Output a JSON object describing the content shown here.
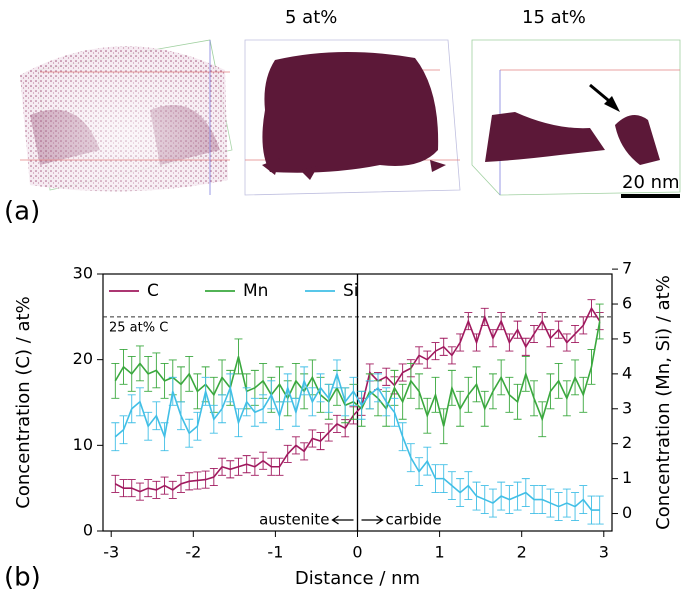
{
  "figure": {
    "label_a": "(a)",
    "label_b": "(b)",
    "view_labels": [
      "5 at%",
      "15 at%"
    ],
    "scale_bar": "20 nm"
  },
  "chart_data": {
    "type": "line",
    "x_label": "Distance / nm",
    "y_label": "Concentration (C) / at%",
    "y2_label": "Concentration (Mn, Si) / at%",
    "xlim": [
      -3.1,
      3.1
    ],
    "xticks": [
      -3,
      -2,
      -1,
      0,
      1,
      2,
      3
    ],
    "ylim": [
      0,
      30
    ],
    "yticks": [
      0,
      10,
      20,
      30
    ],
    "y2lim": [
      -0.5,
      6.86
    ],
    "y2ticks": [
      0,
      1,
      2,
      3,
      4,
      5,
      6,
      7
    ],
    "legend": "top-left",
    "reference_line": {
      "value": 25,
      "label": "25 at% C"
    },
    "divider": 0,
    "annotations": [
      "austenite",
      "carbide"
    ],
    "x": [
      -2.95,
      -2.85,
      -2.75,
      -2.65,
      -2.55,
      -2.45,
      -2.35,
      -2.25,
      -2.15,
      -2.05,
      -1.95,
      -1.85,
      -1.75,
      -1.65,
      -1.55,
      -1.45,
      -1.35,
      -1.25,
      -1.15,
      -1.05,
      -0.95,
      -0.85,
      -0.75,
      -0.65,
      -0.55,
      -0.45,
      -0.35,
      -0.25,
      -0.15,
      -0.05,
      0.05,
      0.15,
      0.25,
      0.35,
      0.45,
      0.55,
      0.65,
      0.75,
      0.85,
      0.95,
      1.05,
      1.15,
      1.25,
      1.35,
      1.45,
      1.55,
      1.65,
      1.75,
      1.85,
      1.95,
      2.05,
      2.15,
      2.25,
      2.35,
      2.45,
      2.55,
      2.65,
      2.75,
      2.85,
      2.95
    ],
    "series": [
      {
        "name": "C",
        "color": "#a0195e",
        "axis": "y",
        "error": 1,
        "values": [
          5.5,
          5.0,
          5.0,
          4.6,
          5.0,
          4.8,
          5.3,
          4.8,
          5.5,
          5.8,
          5.9,
          6.0,
          6.3,
          7.5,
          7.2,
          7.5,
          7.8,
          7.5,
          8.2,
          7.5,
          7.5,
          9.0,
          10.0,
          9.3,
          10.8,
          10.5,
          11.5,
          12.5,
          12.0,
          13.5,
          14.5,
          18.5,
          17.5,
          18.0,
          17.0,
          18.5,
          19.0,
          20.5,
          20.0,
          21.0,
          21.5,
          20.5,
          22.0,
          24.5,
          22.0,
          25.0,
          22.5,
          24.5,
          22.0,
          23.5,
          21.5,
          23.0,
          24.5,
          22.5,
          23.5,
          22.0,
          23.0,
          24.0,
          26.0,
          24.5
        ]
      },
      {
        "name": "Mn",
        "color": "#3aa83e",
        "axis": "y2",
        "error": 0.5,
        "values": [
          3.8,
          4.2,
          4.0,
          4.3,
          4.0,
          4.1,
          3.8,
          3.9,
          3.7,
          4.0,
          3.5,
          3.7,
          3.4,
          3.9,
          3.6,
          4.5,
          3.5,
          3.6,
          3.8,
          3.4,
          3.7,
          3.3,
          3.8,
          3.5,
          3.9,
          3.4,
          3.2,
          3.6,
          3.1,
          3.2,
          3.0,
          3.5,
          3.3,
          3.0,
          3.6,
          3.2,
          3.8,
          3.5,
          2.8,
          3.4,
          2.5,
          3.6,
          3.0,
          3.4,
          3.7,
          3.0,
          3.5,
          3.9,
          3.4,
          3.2,
          4.0,
          3.3,
          2.7,
          3.5,
          3.8,
          3.3,
          3.9,
          3.4,
          4.2,
          5.5
        ]
      },
      {
        "name": "Si",
        "color": "#41bfe6",
        "axis": "y2",
        "error": 0.4,
        "values": [
          2.2,
          2.4,
          3.0,
          3.2,
          2.5,
          2.8,
          2.2,
          3.5,
          2.8,
          2.3,
          2.5,
          3.5,
          2.7,
          3.0,
          3.6,
          2.6,
          3.2,
          2.9,
          3.0,
          3.4,
          2.8,
          3.6,
          2.9,
          3.8,
          3.2,
          3.6,
          3.3,
          4.0,
          3.2,
          3.5,
          3.1,
          3.4,
          3.6,
          3.2,
          2.9,
          2.2,
          1.6,
          1.2,
          1.5,
          1.0,
          1.0,
          0.8,
          0.6,
          0.8,
          0.5,
          0.4,
          0.3,
          0.5,
          0.4,
          0.5,
          0.6,
          0.4,
          0.4,
          0.3,
          0.2,
          0.3,
          0.2,
          0.4,
          0.1,
          0.1
        ]
      }
    ]
  }
}
